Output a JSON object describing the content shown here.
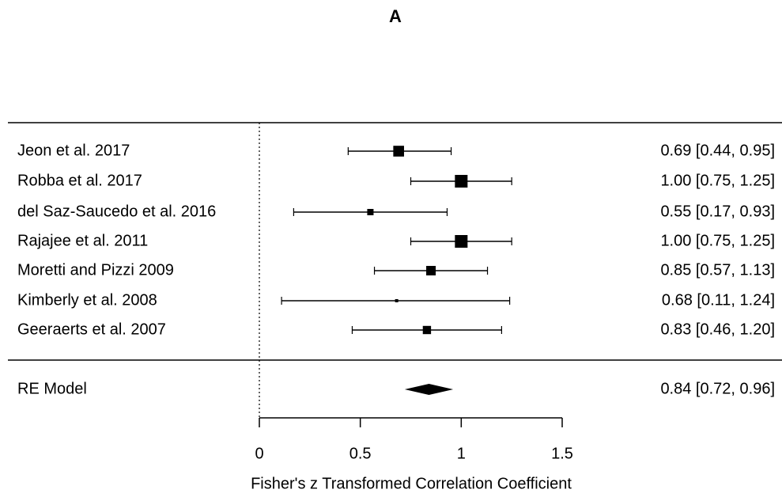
{
  "chart_data": {
    "type": "forest",
    "title": "A",
    "xlabel": "Fisher's z Transformed Correlation Coefficient",
    "xlim": [
      0,
      1.5
    ],
    "xticks": [
      0,
      0.5,
      1,
      1.5
    ],
    "reference_line": 0,
    "studies": [
      {
        "name": "Jeon et al. 2017",
        "estimate": 0.69,
        "ci": [
          0.44,
          0.95
        ],
        "weight": 17,
        "value_label": "0.69 [0.44, 0.95]"
      },
      {
        "name": "Robba et al. 2017",
        "estimate": 1.0,
        "ci": [
          0.75,
          1.25
        ],
        "weight": 20,
        "value_label": "1.00 [0.75, 1.25]"
      },
      {
        "name": "del Saz-Saucedo et al. 2016",
        "estimate": 0.55,
        "ci": [
          0.17,
          0.93
        ],
        "weight": 10,
        "value_label": "0.55 [0.17, 0.93]"
      },
      {
        "name": "Rajajee et al. 2011",
        "estimate": 1.0,
        "ci": [
          0.75,
          1.25
        ],
        "weight": 20,
        "value_label": "1.00 [0.75, 1.25]"
      },
      {
        "name": "Moretti and Pizzi 2009",
        "estimate": 0.85,
        "ci": [
          0.57,
          1.13
        ],
        "weight": 15,
        "value_label": "0.85 [0.57, 1.13]"
      },
      {
        "name": "Kimberly et al. 2008",
        "estimate": 0.68,
        "ci": [
          0.11,
          1.24
        ],
        "weight": 5,
        "value_label": "0.68 [0.11, 1.24]"
      },
      {
        "name": "Geeraerts et al. 2007",
        "estimate": 0.83,
        "ci": [
          0.46,
          1.2
        ],
        "weight": 13,
        "value_label": "0.83 [0.46, 1.20]"
      }
    ],
    "summary": {
      "name": "RE Model",
      "estimate": 0.84,
      "ci": [
        0.72,
        0.96
      ],
      "value_label": "0.84 [0.72, 0.96]"
    }
  }
}
